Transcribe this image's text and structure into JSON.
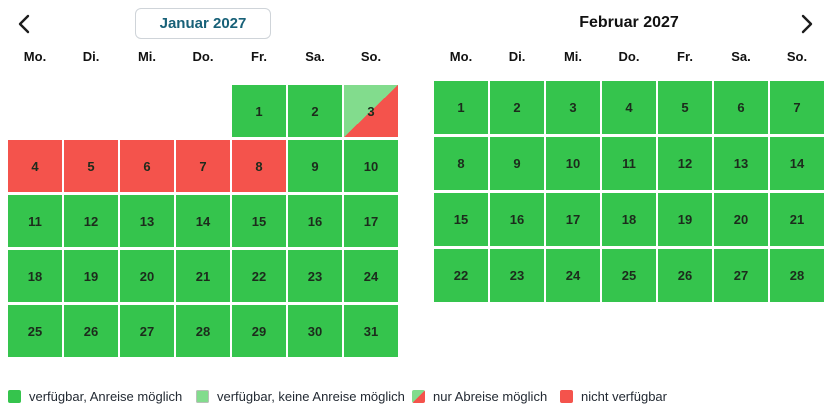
{
  "nav": {
    "prev_icon": "chevron-left",
    "next_icon": "chevron-right"
  },
  "colors": {
    "available": "#35c44d",
    "no_arrival": "#82dc8d",
    "unavailable": "#f4534c",
    "title_accent": "#186178"
  },
  "calendars": [
    {
      "id": "january",
      "title": "Januar 2027",
      "weekdays": [
        "Mo.",
        "Di.",
        "Mi.",
        "Do.",
        "Fr.",
        "Sa.",
        "So."
      ],
      "weeks": [
        [
          {
            "day": "",
            "state": "empty"
          },
          {
            "day": "",
            "state": "empty"
          },
          {
            "day": "",
            "state": "empty"
          },
          {
            "day": "",
            "state": "empty"
          },
          {
            "day": "1",
            "state": "available"
          },
          {
            "day": "2",
            "state": "available"
          },
          {
            "day": "3",
            "state": "departure-only"
          }
        ],
        [
          {
            "day": "4",
            "state": "unavailable"
          },
          {
            "day": "5",
            "state": "unavailable"
          },
          {
            "day": "6",
            "state": "unavailable"
          },
          {
            "day": "7",
            "state": "unavailable"
          },
          {
            "day": "8",
            "state": "unavailable"
          },
          {
            "day": "9",
            "state": "available"
          },
          {
            "day": "10",
            "state": "available"
          }
        ],
        [
          {
            "day": "11",
            "state": "available"
          },
          {
            "day": "12",
            "state": "available"
          },
          {
            "day": "13",
            "state": "available"
          },
          {
            "day": "14",
            "state": "available"
          },
          {
            "day": "15",
            "state": "available"
          },
          {
            "day": "16",
            "state": "available"
          },
          {
            "day": "17",
            "state": "available"
          }
        ],
        [
          {
            "day": "18",
            "state": "available"
          },
          {
            "day": "19",
            "state": "available"
          },
          {
            "day": "20",
            "state": "available"
          },
          {
            "day": "21",
            "state": "available"
          },
          {
            "day": "22",
            "state": "available"
          },
          {
            "day": "23",
            "state": "available"
          },
          {
            "day": "24",
            "state": "available"
          }
        ],
        [
          {
            "day": "25",
            "state": "available"
          },
          {
            "day": "26",
            "state": "available"
          },
          {
            "day": "27",
            "state": "available"
          },
          {
            "day": "28",
            "state": "available"
          },
          {
            "day": "29",
            "state": "available"
          },
          {
            "day": "30",
            "state": "available"
          },
          {
            "day": "31",
            "state": "available"
          }
        ]
      ]
    },
    {
      "id": "february",
      "title": "Februar 2027",
      "weekdays": [
        "Mo.",
        "Di.",
        "Mi.",
        "Do.",
        "Fr.",
        "Sa.",
        "So."
      ],
      "weeks": [
        [
          {
            "day": "1",
            "state": "available"
          },
          {
            "day": "2",
            "state": "available"
          },
          {
            "day": "3",
            "state": "available"
          },
          {
            "day": "4",
            "state": "available"
          },
          {
            "day": "5",
            "state": "available"
          },
          {
            "day": "6",
            "state": "available"
          },
          {
            "day": "7",
            "state": "available"
          }
        ],
        [
          {
            "day": "8",
            "state": "available"
          },
          {
            "day": "9",
            "state": "available"
          },
          {
            "day": "10",
            "state": "available"
          },
          {
            "day": "11",
            "state": "available"
          },
          {
            "day": "12",
            "state": "available"
          },
          {
            "day": "13",
            "state": "available"
          },
          {
            "day": "14",
            "state": "available"
          }
        ],
        [
          {
            "day": "15",
            "state": "available"
          },
          {
            "day": "16",
            "state": "available"
          },
          {
            "day": "17",
            "state": "available"
          },
          {
            "day": "18",
            "state": "available"
          },
          {
            "day": "19",
            "state": "available"
          },
          {
            "day": "20",
            "state": "available"
          },
          {
            "day": "21",
            "state": "available"
          }
        ],
        [
          {
            "day": "22",
            "state": "available"
          },
          {
            "day": "23",
            "state": "available"
          },
          {
            "day": "24",
            "state": "available"
          },
          {
            "day": "25",
            "state": "available"
          },
          {
            "day": "26",
            "state": "available"
          },
          {
            "day": "27",
            "state": "available"
          },
          {
            "day": "28",
            "state": "available"
          }
        ]
      ]
    }
  ],
  "legend": [
    {
      "state": "available",
      "label": "verfügbar, Anreise möglich"
    },
    {
      "state": "no-arrival",
      "label": "verfügbar, keine Anreise möglich"
    },
    {
      "state": "departure-only",
      "label": "nur Abreise möglich"
    },
    {
      "state": "unavailable",
      "label": "nicht verfügbar"
    }
  ]
}
